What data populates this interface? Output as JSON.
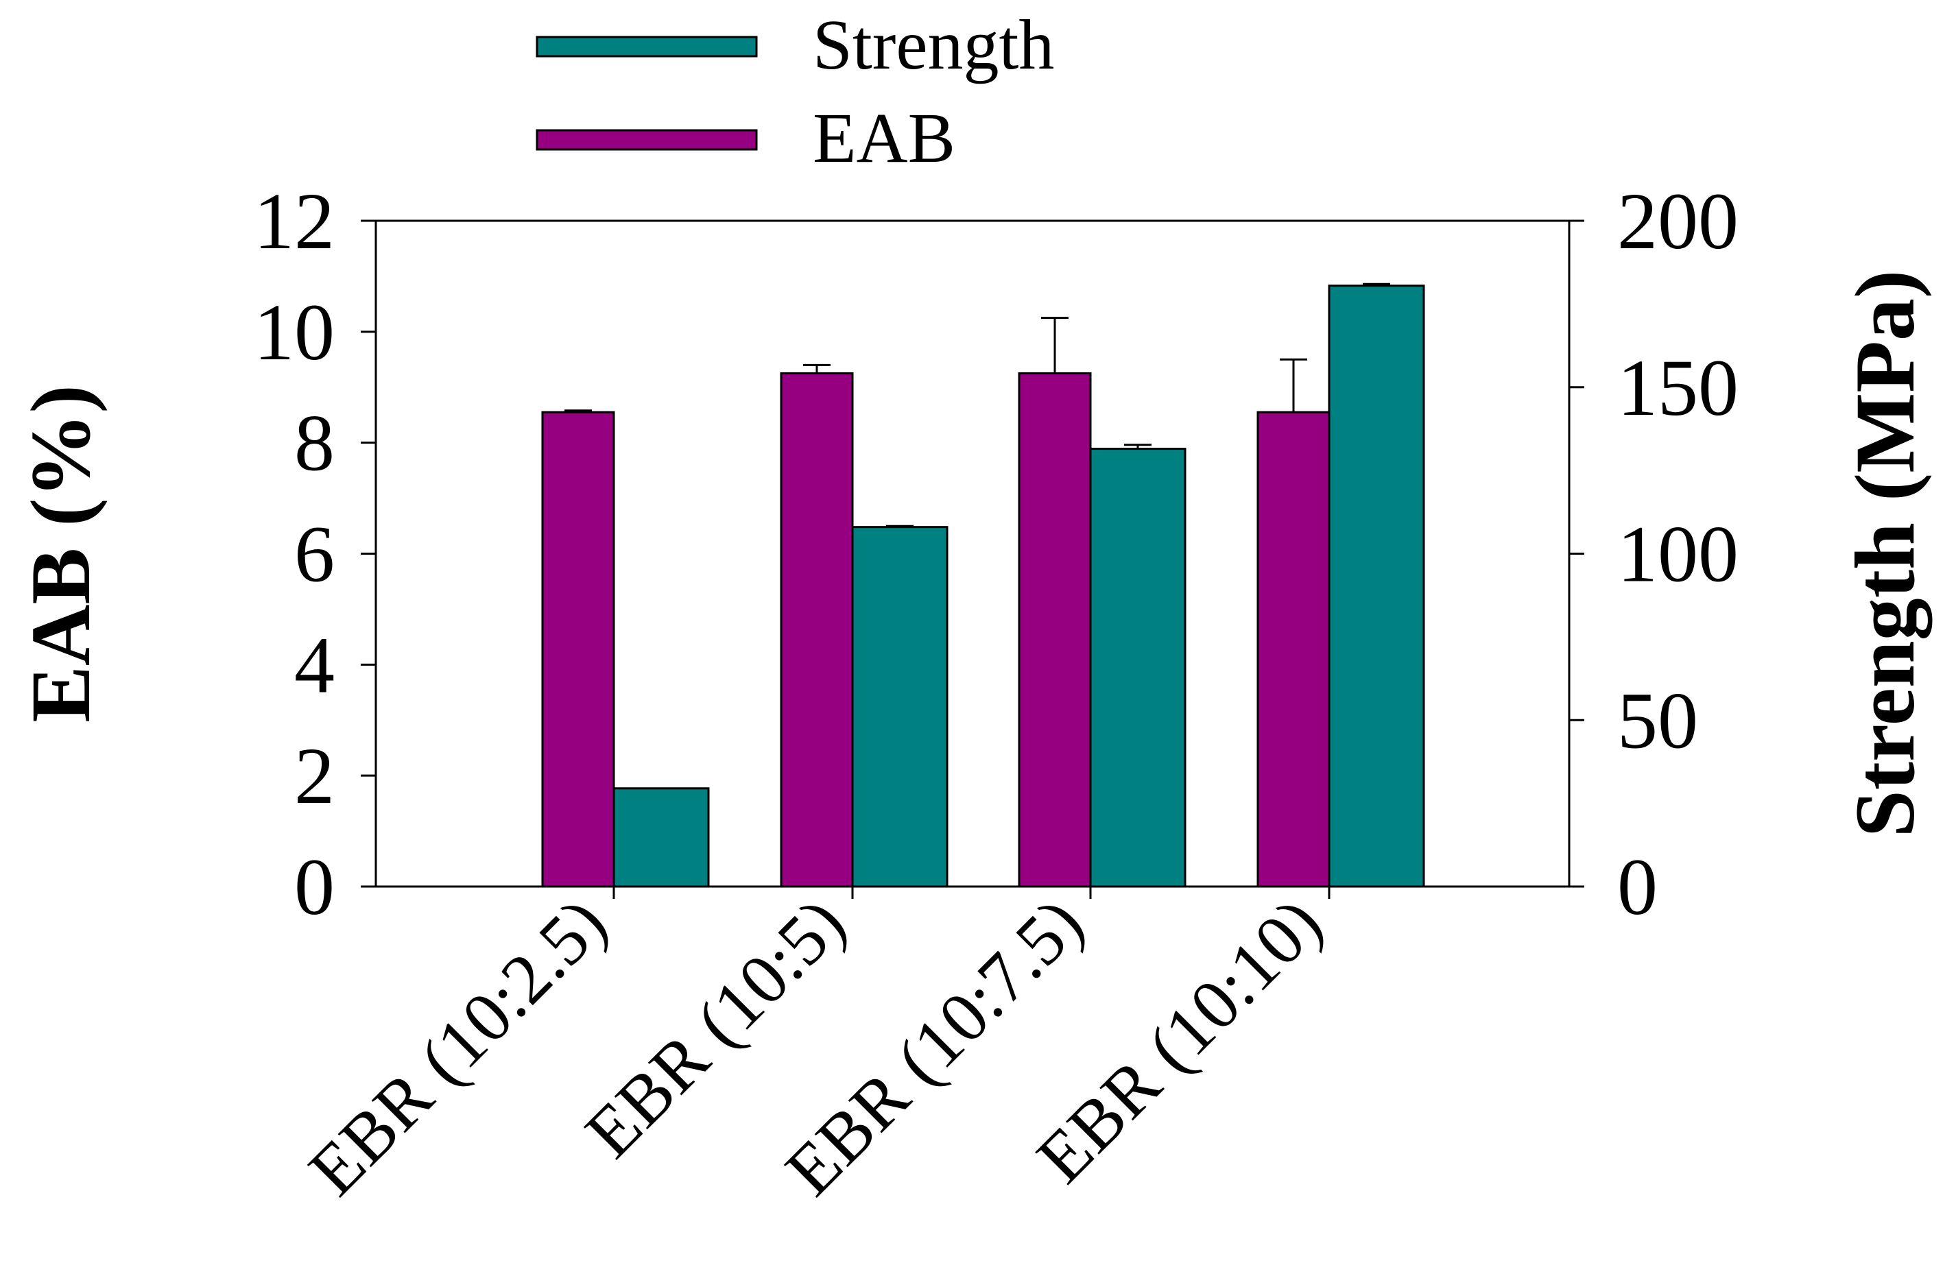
{
  "chart_data": {
    "type": "bar",
    "categories": [
      "EBR (10:2.5)",
      "EBR (10:5)",
      "EBR (10:7.5)",
      "EBR (10:10)"
    ],
    "series": [
      {
        "name": "EAB",
        "axis": "left",
        "color": "#960080",
        "values": [
          8.55,
          9.25,
          9.25,
          8.55
        ],
        "errors": [
          0.03,
          0.15,
          1.0,
          0.95
        ]
      },
      {
        "name": "Strength",
        "axis": "right",
        "color": "#008080",
        "values": [
          29.5,
          108,
          131.5,
          180.5
        ],
        "errors": [
          0,
          0.3,
          1.2,
          0.5
        ]
      }
    ],
    "ylabel_left": "EAB (%)",
    "ylabel_right": "Strength (MPa)",
    "ylim_left": [
      0,
      12
    ],
    "ylim_right": [
      0,
      200
    ],
    "yticks_left": [
      "0",
      "2",
      "4",
      "6",
      "8",
      "10",
      "12"
    ],
    "yticks_right": [
      "0",
      "50",
      "100",
      "150",
      "200"
    ],
    "legend": {
      "placement": "top-center",
      "entries": [
        "Strength",
        "EAB"
      ]
    },
    "grid": false
  }
}
